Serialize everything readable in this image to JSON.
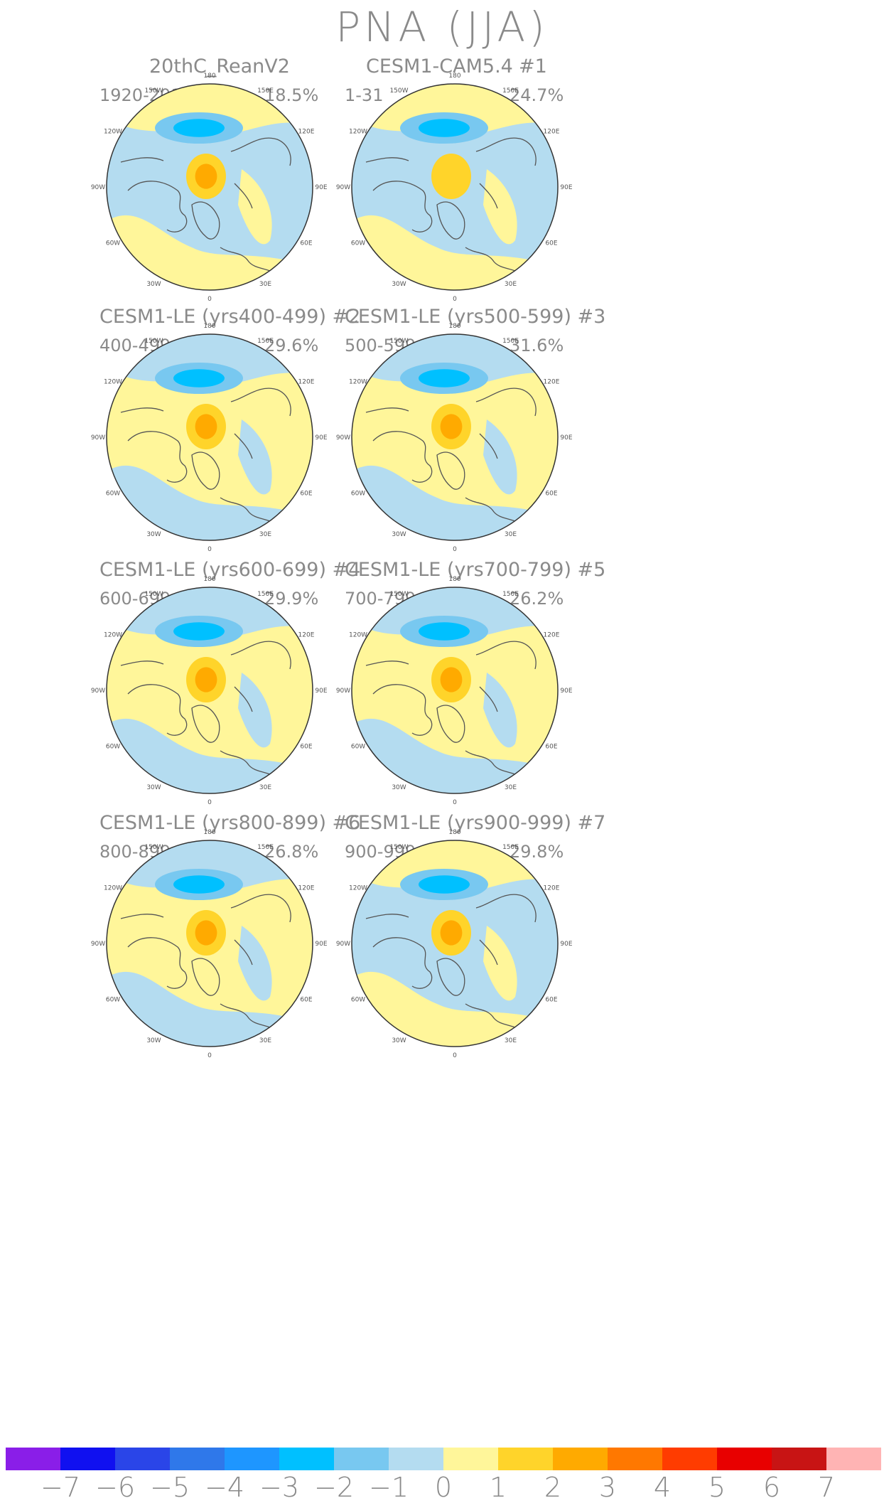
{
  "title": "PNA (JJA)",
  "colors": {
    "neg1": "#b4dcf0",
    "neg2": "#78c8f0",
    "neg3": "#00c0ff",
    "pos1": "#fff69a",
    "pos2": "#ffd42a",
    "pos3": "#ffaa00",
    "land_line": "#555555",
    "outline": "#333333"
  },
  "longitude_labels": [
    "180",
    "150E",
    "120E",
    "90E",
    "60E",
    "30E",
    "0",
    "30W",
    "60W",
    "90W",
    "120W",
    "150W"
  ],
  "panels": [
    {
      "title": "20thC_ReanV2",
      "number": "",
      "period": "1920-2011",
      "variance": "18.5%",
      "high_level": 2,
      "low_level": 2,
      "base": "neg1"
    },
    {
      "title": "CESM1-CAM5.4",
      "number": "#1",
      "period": "1-31",
      "variance": "24.7%",
      "high_level": 1,
      "low_level": 2,
      "base": "neg1"
    },
    {
      "title": "CESM1-LE (yrs400-499) #2",
      "number": "",
      "period": "400-499",
      "variance": "29.6%",
      "high_level": 2,
      "low_level": 3,
      "base": "pos1"
    },
    {
      "title": "CESM1-LE (yrs500-599) #3",
      "number": "",
      "period": "500-599",
      "variance": "31.6%",
      "high_level": 3,
      "low_level": 2,
      "base": "pos1"
    },
    {
      "title": "CESM1-LE (yrs600-699) #4",
      "number": "",
      "period": "600-699",
      "variance": "29.9%",
      "high_level": 3,
      "low_level": 2,
      "base": "pos1"
    },
    {
      "title": "CESM1-LE (yrs700-799) #5",
      "number": "",
      "period": "700-799",
      "variance": "26.2%",
      "high_level": 3,
      "low_level": 2,
      "base": "pos1"
    },
    {
      "title": "CESM1-LE (yrs800-899) #6",
      "number": "",
      "period": "800-899",
      "variance": "26.8%",
      "high_level": 3,
      "low_level": 2,
      "base": "pos1"
    },
    {
      "title": "CESM1-LE (yrs900-999) #7",
      "number": "",
      "period": "900-999",
      "variance": "29.8%",
      "high_level": 3,
      "low_level": 2,
      "base": "neg1"
    }
  ],
  "colorbar": {
    "labels": [
      "−7",
      "−6",
      "−5",
      "−4",
      "−3",
      "−2",
      "−1",
      "0",
      "1",
      "2",
      "3",
      "4",
      "5",
      "6",
      "7"
    ],
    "colors": [
      "#8a1ee8",
      "#1010f0",
      "#2a45e8",
      "#2f78ea",
      "#1e96ff",
      "#00c0ff",
      "#78c8f0",
      "#b4dcf0",
      "#fff69a",
      "#ffd42a",
      "#ffaa00",
      "#ff7800",
      "#ff3c00",
      "#e80000",
      "#c81414",
      "#ffb4b4"
    ]
  }
}
